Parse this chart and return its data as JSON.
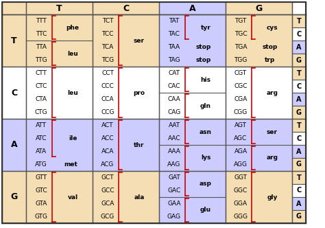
{
  "bg_yellow": "#F5DEB3",
  "bg_blue": "#CCCCFF",
  "bg_white": "#FFFFFF",
  "red_color": "#CC0000",
  "row_labels": [
    "T",
    "C",
    "A",
    "G"
  ],
  "col_labels": [
    "T",
    "C",
    "A",
    "G"
  ],
  "third_labels": [
    "T",
    "C",
    "A",
    "G"
  ],
  "cell_data": {
    "0,0": [
      {
        "codons": [
          "TTT",
          "TTC"
        ],
        "aa": "phe",
        "bracket": true,
        "sep_after": true
      },
      {
        "codons": [
          "TTA",
          "TTG"
        ],
        "aa": "leu",
        "bracket": true
      }
    ],
    "0,1": [
      {
        "codons": [
          "TCT",
          "TCC",
          "TCA",
          "TCG"
        ],
        "aa": "ser",
        "bracket": true
      }
    ],
    "0,2": [
      {
        "codons": [
          "TAT",
          "TAC"
        ],
        "aa": "tyr",
        "bracket": true,
        "sep_after": true
      },
      {
        "codons": [
          "TAA"
        ],
        "aa": "stop",
        "bracket": false,
        "inline": true
      },
      {
        "codons": [
          "TAG"
        ],
        "aa": "stop",
        "bracket": false,
        "inline": true
      }
    ],
    "0,3": [
      {
        "codons": [
          "TGT",
          "TGC"
        ],
        "aa": "cys",
        "bracket": true,
        "sep_after": true
      },
      {
        "codons": [
          "TGA"
        ],
        "aa": "stop",
        "bracket": false,
        "inline": true
      },
      {
        "codons": [
          "TGG"
        ],
        "aa": "trp",
        "bracket": false,
        "inline": true
      }
    ],
    "1,0": [
      {
        "codons": [
          "CTT",
          "CTC",
          "CTA",
          "CTG"
        ],
        "aa": "leu",
        "bracket": true
      }
    ],
    "1,1": [
      {
        "codons": [
          "CCT",
          "CCC",
          "CCA",
          "CCG"
        ],
        "aa": "pro",
        "bracket": true
      }
    ],
    "1,2": [
      {
        "codons": [
          "CAT",
          "CAC"
        ],
        "aa": "his",
        "bracket": true,
        "sep_after": true
      },
      {
        "codons": [
          "CAA",
          "CAG"
        ],
        "aa": "gln",
        "bracket": true
      }
    ],
    "1,3": [
      {
        "codons": [
          "CGT",
          "CGC",
          "CGA",
          "CGG"
        ],
        "aa": "arg",
        "bracket": true
      }
    ],
    "2,0": [
      {
        "codons": [
          "ATT",
          "ATC",
          "ATA"
        ],
        "aa": "ile",
        "bracket": true,
        "sep_after": true
      },
      {
        "codons": [
          "ATG"
        ],
        "aa": "met",
        "bracket": false,
        "inline": true
      }
    ],
    "2,1": [
      {
        "codons": [
          "ACT",
          "ACC",
          "ACA",
          "ACG"
        ],
        "aa": "thr",
        "bracket": true
      }
    ],
    "2,2": [
      {
        "codons": [
          "AAT",
          "AAC"
        ],
        "aa": "asn",
        "bracket": true,
        "sep_after": true
      },
      {
        "codons": [
          "AAA",
          "AAG"
        ],
        "aa": "lys",
        "bracket": true
      }
    ],
    "2,3": [
      {
        "codons": [
          "AGT",
          "AGC"
        ],
        "aa": "ser",
        "bracket": true,
        "sep_after": true
      },
      {
        "codons": [
          "AGA",
          "AGG"
        ],
        "aa": "arg",
        "bracket": true
      }
    ],
    "3,0": [
      {
        "codons": [
          "GTT",
          "GTC",
          "GTA",
          "GTG"
        ],
        "aa": "val",
        "bracket": true
      }
    ],
    "3,1": [
      {
        "codons": [
          "GCT",
          "GCC",
          "GCA",
          "GCG"
        ],
        "aa": "ala",
        "bracket": true
      }
    ],
    "3,2": [
      {
        "codons": [
          "GAT",
          "GAC"
        ],
        "aa": "asp",
        "bracket": true,
        "sep_after": true
      },
      {
        "codons": [
          "GAA",
          "GAG"
        ],
        "aa": "glu",
        "bracket": true
      }
    ],
    "3,3": [
      {
        "codons": [
          "GGT",
          "GGC",
          "GGA",
          "GGG"
        ],
        "aa": "gly",
        "bracket": true
      }
    ]
  }
}
